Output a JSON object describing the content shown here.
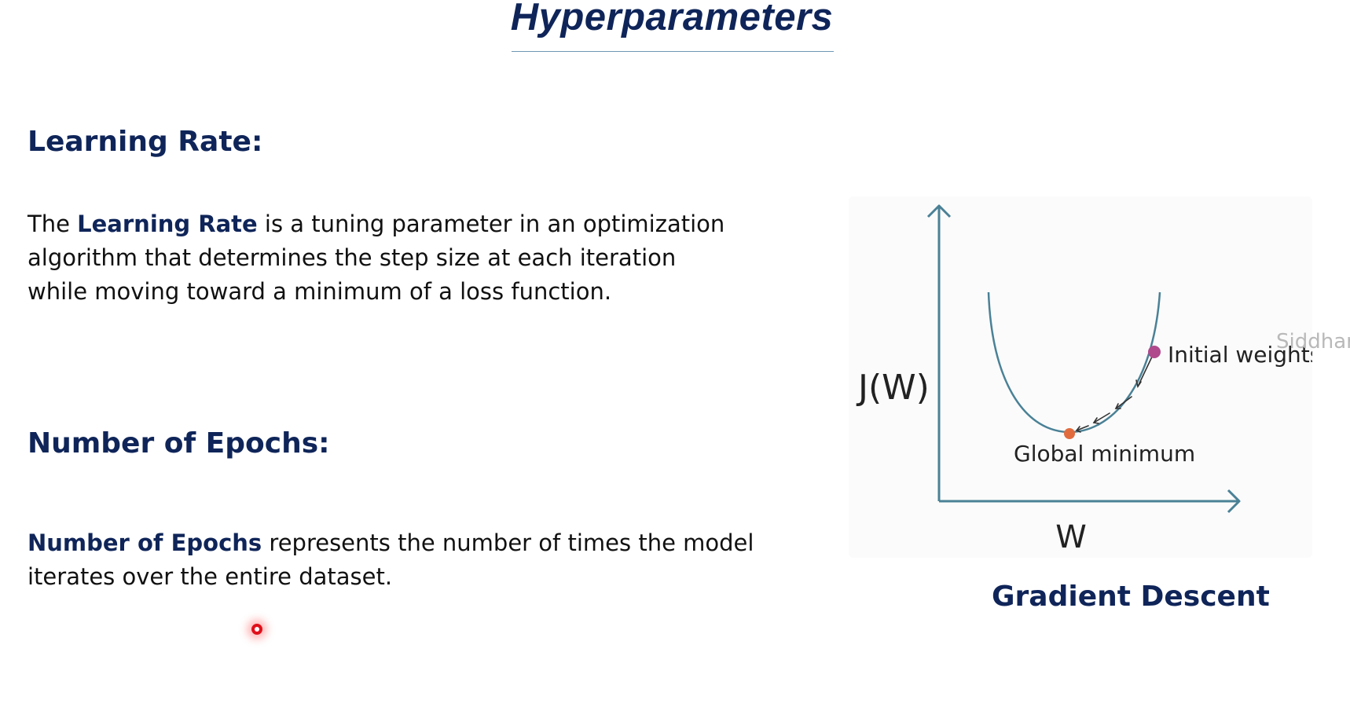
{
  "slide": {
    "title": "Hyperparameters",
    "learning_rate": {
      "heading": "Learning Rate:",
      "para_prefix": "The ",
      "para_bold": "Learning Rate",
      "para_line1_rest": " is a tuning parameter in an optimization",
      "para_line2": "algorithm that determines the step size at each iteration",
      "para_line3": "while moving toward a minimum of a loss function."
    },
    "epochs": {
      "heading": "Number of Epochs:",
      "para_bold": "Number of Epochs",
      "para_line1_rest": " represents the number of times the model",
      "para_line2": "iterates over the entire dataset."
    },
    "figure": {
      "y_label": "J(W)",
      "x_label": "W",
      "initial_label": "Initial weights",
      "global_label": "Global minimum",
      "caption": "Gradient Descent",
      "curve_color": "#4a8196",
      "axis_color": "#4a8196",
      "initial_point_color": "#b04a8c",
      "minimum_point_color": "#e26b3e"
    },
    "watermark": "Siddhar"
  }
}
